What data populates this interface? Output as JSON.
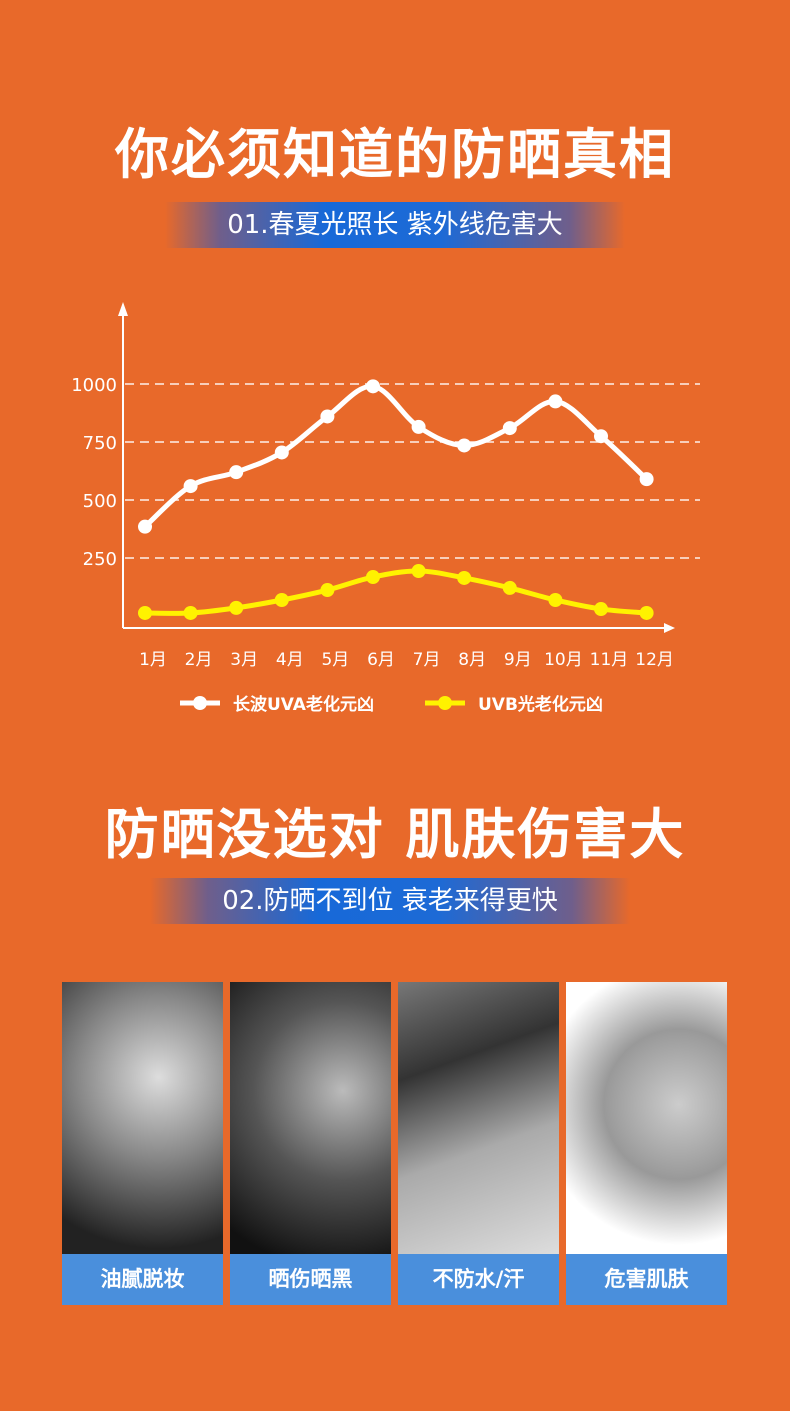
{
  "section1": {
    "title": "你必须知道的防晒真相",
    "subtitle": "01.春夏光照长 紫外线危害大"
  },
  "section2": {
    "title": "防晒没选对 肌肤伤害大",
    "subtitle": "02.防晒不到位 衰老来得更快"
  },
  "chart_data": {
    "type": "line",
    "categories": [
      "1月",
      "2月",
      "3月",
      "4月",
      "5月",
      "6月",
      "7月",
      "8月",
      "9月",
      "10月",
      "11月",
      "12月"
    ],
    "yticks": [
      250,
      500,
      750,
      1000
    ],
    "ylim": [
      0,
      1200
    ],
    "grid": "dashed horizontal",
    "legend_position": "bottom",
    "series": [
      {
        "name": "长波UVA老化元凶",
        "color": "#ffffff",
        "values": [
          385,
          560,
          620,
          705,
          860,
          990,
          815,
          735,
          810,
          925,
          775,
          590
        ]
      },
      {
        "name": "UVB光老化元凶",
        "color": "#fff200",
        "values": [
          13,
          13,
          35,
          69,
          112,
          168,
          194,
          164,
          121,
          69,
          30,
          13
        ]
      }
    ]
  },
  "cards": [
    {
      "label": "油腻脱妆"
    },
    {
      "label": "晒伤晒黑"
    },
    {
      "label": "不防水/汗"
    },
    {
      "label": "危害肌肤"
    }
  ]
}
